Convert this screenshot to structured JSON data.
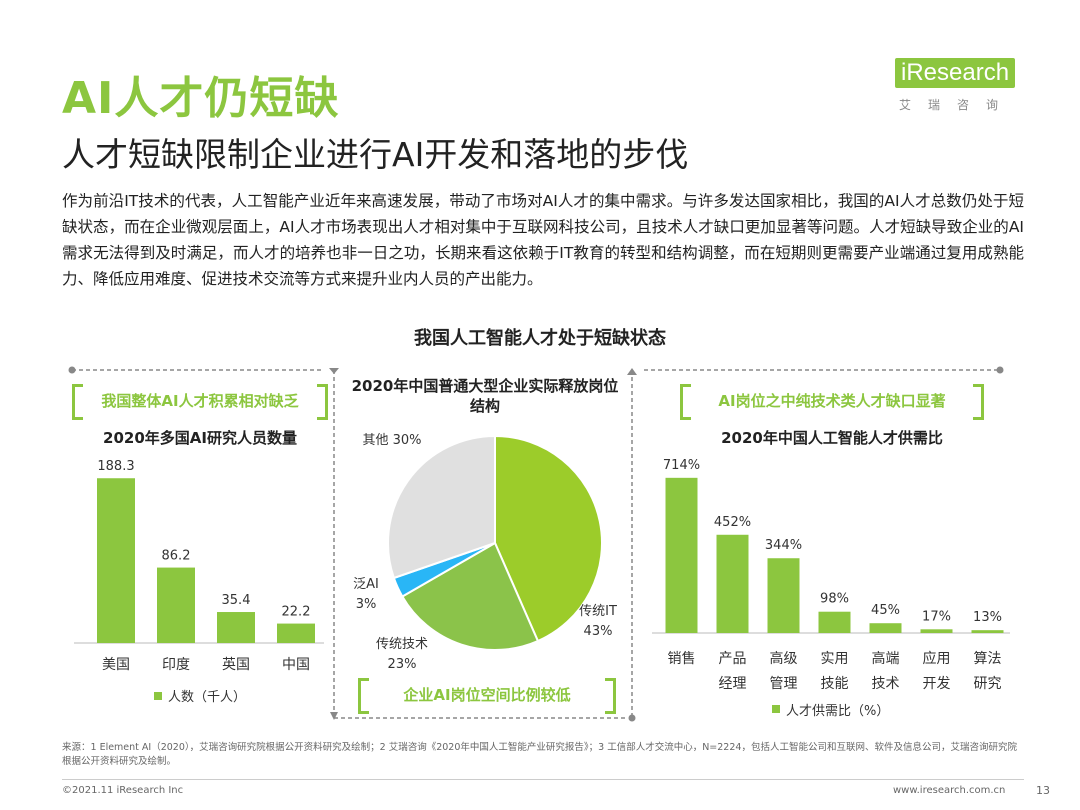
{
  "header": {
    "title": "AI人才仍短缺",
    "subtitle": "人才短缺限制企业进行AI开发和落地的步伐",
    "logo_text": "iResearch",
    "logo_sub": "艾瑞咨询"
  },
  "intro": "作为前沿IT技术的代表，人工智能产业近年来高速发展，带动了市场对AI人才的集中需求。与许多发达国家相比，我国的AI人才总数仍处于短缺状态，而在企业微观层面上，AI人才市场表现出人才相对集中于互联网科技公司，且技术人才缺口更加显著等问题。人才短缺导致企业的AI需求无法得到及时满足，而人才的培养也非一日之功，长期来看这依赖于IT教育的转型和结构调整，而在短期则更需要产业端通过复用成熟能力、降低应用难度、促进技术交流等方式来提升业内人员的产出能力。",
  "section_title": "我国人工智能人才处于短缺状态",
  "left_panel": {
    "tag": "我国整体AI人才积累相对缺乏"
  },
  "middle_panel": {
    "tag": "企业AI岗位空间比例较低"
  },
  "right_panel": {
    "tag": "AI岗位之中纯技术类人才缺口显著"
  },
  "colors": {
    "accent": "#8cc63f",
    "pie_green": "#9ccc2a",
    "pie_blue": "#29b6f6",
    "pie_gray": "#e0e0e0"
  },
  "chart_data": [
    {
      "type": "bar",
      "title": "2020年多国AI研究人员数量",
      "categories": [
        "美国",
        "印度",
        "英国",
        "中国"
      ],
      "series": [
        {
          "name": "人数（千人）",
          "values": [
            188.3,
            86.2,
            35.4,
            22.2
          ]
        }
      ],
      "value_labels": [
        "188.3",
        "86.2",
        "35.4",
        "22.2"
      ],
      "ylim": [
        0,
        200
      ],
      "legend_position": "bottom"
    },
    {
      "type": "pie",
      "title": "2020年中国普通大型企业实际释放岗位结构",
      "slices": [
        {
          "label": "传统IT",
          "value": 43,
          "value_label": "43%"
        },
        {
          "label": "传统技术",
          "value": 23,
          "value_label": "23%"
        },
        {
          "label": "泛AI",
          "value": 3,
          "value_label": "3%"
        },
        {
          "label": "其他",
          "value": 30,
          "value_label": "30%"
        }
      ]
    },
    {
      "type": "bar",
      "title": "2020年中国人工智能人才供需比",
      "categories": [
        "销售",
        "产品经理",
        "高级管理",
        "实用技能",
        "高端技术",
        "应用开发",
        "算法研究"
      ],
      "category_lines": [
        [
          "销售"
        ],
        [
          "产品",
          "经理"
        ],
        [
          "高级",
          "管理"
        ],
        [
          "实用",
          "技能"
        ],
        [
          "高端",
          "技术"
        ],
        [
          "应用",
          "开发"
        ],
        [
          "算法",
          "研究"
        ]
      ],
      "series": [
        {
          "name": "人才供需比（%）",
          "values": [
            714,
            452,
            344,
            98,
            45,
            17,
            13
          ]
        }
      ],
      "value_labels": [
        "714%",
        "452%",
        "344%",
        "98%",
        "45%",
        "17%",
        "13%"
      ],
      "ylim": [
        0,
        750
      ],
      "legend_position": "bottom"
    }
  ],
  "footer": {
    "source": "来源：1 Element AI（2020），艾瑞咨询研究院根据公开资料研究及绘制；2 艾瑞咨询《2020年中国人工智能产业研究报告》；3 工信部人才交流中心，N=2224，包括人工智能公司和互联网、软件及信息公司，艾瑞咨询研究院根据公开资料研究及绘制。",
    "copyright": "©2021.11 iResearch Inc",
    "website": "www.iresearch.com.cn",
    "page": "13"
  }
}
